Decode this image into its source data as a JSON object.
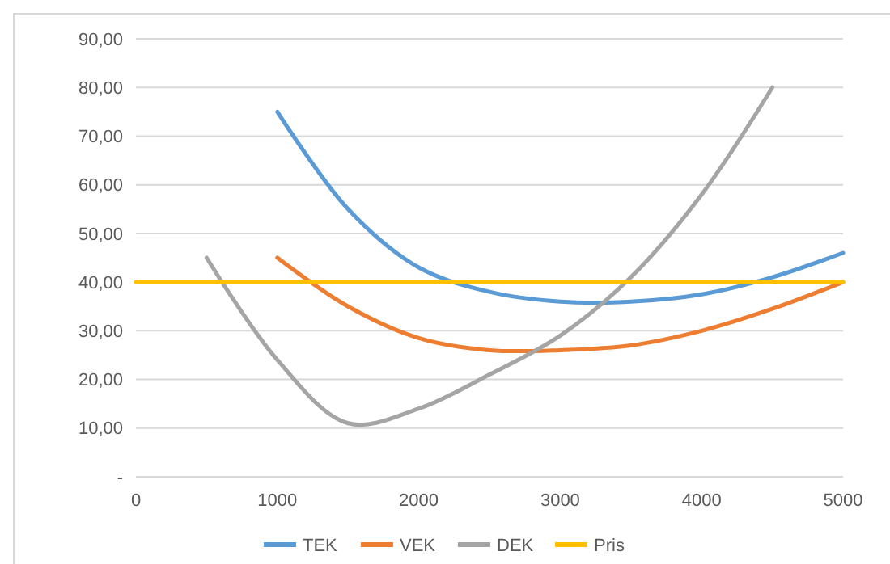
{
  "chart_data": {
    "type": "line",
    "xlim": [
      0,
      5000
    ],
    "xticks": [
      0,
      1000,
      2000,
      3000,
      4000,
      5000
    ],
    "ylim": [
      0,
      90
    ],
    "yticks": [
      {
        "value": 0,
        "label": "-"
      },
      {
        "value": 10,
        "label": "10,00"
      },
      {
        "value": 20,
        "label": "20,00"
      },
      {
        "value": 30,
        "label": "30,00"
      },
      {
        "value": 40,
        "label": "40,00"
      },
      {
        "value": 50,
        "label": "50,00"
      },
      {
        "value": 60,
        "label": "60,00"
      },
      {
        "value": 70,
        "label": "70,00"
      },
      {
        "value": 80,
        "label": "80,00"
      },
      {
        "value": 90,
        "label": "90,00"
      }
    ],
    "grid": "y",
    "legend": "bottom",
    "marker": "none",
    "line_style": "solid",
    "series": [
      {
        "name": "TEK",
        "color": "#5b9bd5",
        "x": [
          1000,
          1500,
          2000,
          2500,
          3000,
          3500,
          4000,
          4500,
          5000
        ],
        "values": [
          75,
          55,
          43,
          38,
          36,
          36,
          37.5,
          41,
          46
        ]
      },
      {
        "name": "VEK",
        "color": "#ed7d31",
        "x": [
          1000,
          1500,
          2000,
          2500,
          3000,
          3500,
          4000,
          4500,
          5000
        ],
        "values": [
          45,
          35,
          28.5,
          26,
          26,
          27,
          30,
          34.5,
          40
        ]
      },
      {
        "name": "DEK",
        "color": "#a5a5a5",
        "x": [
          500,
          1000,
          1500,
          2000,
          2500,
          3000,
          3500,
          4000,
          4500
        ],
        "values": [
          45,
          24,
          11,
          14,
          21,
          29,
          41,
          58,
          80
        ]
      },
      {
        "name": "Pris",
        "color": "#ffc000",
        "x": [
          0,
          5000
        ],
        "values": [
          40,
          40
        ]
      }
    ]
  }
}
